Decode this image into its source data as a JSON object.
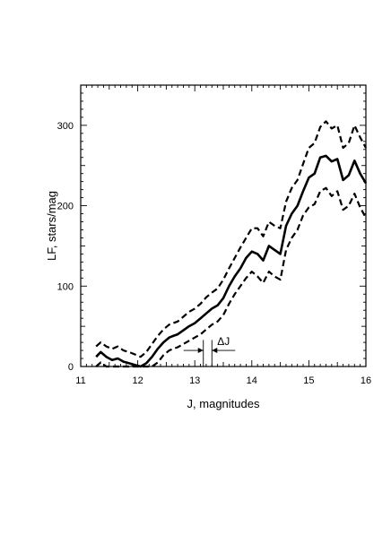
{
  "chart_data": {
    "type": "line",
    "title": "",
    "xlabel": "J, magnitudes",
    "ylabel": "LF, stars/mag",
    "xlim": [
      11,
      16
    ],
    "ylim": [
      0,
      350
    ],
    "x_ticks": [
      11,
      12,
      13,
      14,
      15,
      16
    ],
    "x_tick_labels": [
      "11",
      "12",
      "13",
      "14",
      "15",
      "16"
    ],
    "y_ticks": [
      0,
      100,
      200,
      300
    ],
    "y_tick_labels": [
      "0",
      "100",
      "200",
      "300"
    ],
    "grid": false,
    "legend": "none",
    "annotations": [
      {
        "text": "ΔJ",
        "x1": 13.15,
        "x2": 13.3,
        "y": 20
      }
    ],
    "series": [
      {
        "style": "solid-bold",
        "color": "#000000",
        "x": [
          11.27,
          11.35,
          11.45,
          11.55,
          11.65,
          11.75,
          11.85,
          11.95,
          12.05,
          12.15,
          12.25,
          12.35,
          12.45,
          12.55,
          12.62,
          12.7,
          12.8,
          12.9,
          13.0,
          13.1,
          13.2,
          13.3,
          13.4,
          13.5,
          13.6,
          13.7,
          13.8,
          13.9,
          14.0,
          14.1,
          14.2,
          14.3,
          14.4,
          14.5,
          14.6,
          14.7,
          14.8,
          14.9,
          15.0,
          15.1,
          15.2,
          15.3,
          15.4,
          15.5,
          15.6,
          15.7,
          15.8,
          15.9,
          16.0
        ],
        "y": [
          12,
          18,
          12,
          8,
          10,
          6,
          4,
          2,
          0,
          4,
          12,
          22,
          30,
          36,
          38,
          40,
          45,
          50,
          54,
          60,
          66,
          72,
          76,
          85,
          100,
          112,
          122,
          135,
          143,
          140,
          132,
          150,
          145,
          140,
          175,
          190,
          200,
          218,
          235,
          240,
          260,
          262,
          255,
          258,
          232,
          238,
          256,
          240,
          228
        ]
      },
      {
        "style": "dashed-bold",
        "color": "#000000",
        "x": [
          11.27,
          11.35,
          11.45,
          11.55,
          11.65,
          11.75,
          11.85,
          11.95,
          12.05,
          12.15,
          12.25,
          12.35,
          12.45,
          12.55,
          12.62,
          12.7,
          12.8,
          12.9,
          13.0,
          13.1,
          13.2,
          13.3,
          13.4,
          13.5,
          13.6,
          13.7,
          13.8,
          13.9,
          14.0,
          14.1,
          14.2,
          14.3,
          14.4,
          14.5,
          14.6,
          14.7,
          14.8,
          14.9,
          15.0,
          15.1,
          15.2,
          15.3,
          15.4,
          15.5,
          15.6,
          15.7,
          15.8,
          15.9,
          16.0
        ],
        "y": [
          25,
          30,
          25,
          22,
          25,
          20,
          18,
          15,
          12,
          18,
          28,
          38,
          46,
          52,
          54,
          56,
          62,
          68,
          72,
          78,
          86,
          92,
          97,
          108,
          122,
          135,
          148,
          160,
          172,
          172,
          162,
          180,
          175,
          172,
          205,
          222,
          232,
          252,
          272,
          278,
          298,
          305,
          296,
          300,
          272,
          278,
          300,
          285,
          272
        ]
      },
      {
        "style": "dashed-bold",
        "color": "#000000",
        "x": [
          11.27,
          11.35,
          11.45,
          11.55,
          11.65,
          11.75,
          11.85,
          11.95,
          12.05,
          12.15,
          12.25,
          12.35,
          12.45,
          12.55,
          12.62,
          12.7,
          12.8,
          12.9,
          13.0,
          13.1,
          13.2,
          13.3,
          13.4,
          13.5,
          13.6,
          13.7,
          13.8,
          13.9,
          14.0,
          14.1,
          14.2,
          14.3,
          14.4,
          14.5,
          14.6,
          14.7,
          14.8,
          14.9,
          15.0,
          15.1,
          15.2,
          15.3,
          15.4,
          15.5,
          15.6,
          15.7,
          15.8,
          15.9,
          16.0
        ],
        "y": [
          0,
          5,
          0,
          0,
          0,
          0,
          0,
          0,
          0,
          0,
          0,
          5,
          14,
          20,
          22,
          24,
          28,
          32,
          36,
          40,
          46,
          52,
          56,
          64,
          78,
          90,
          100,
          110,
          118,
          112,
          104,
          118,
          112,
          108,
          145,
          160,
          170,
          188,
          198,
          202,
          218,
          222,
          212,
          218,
          195,
          200,
          215,
          198,
          185
        ]
      }
    ]
  }
}
